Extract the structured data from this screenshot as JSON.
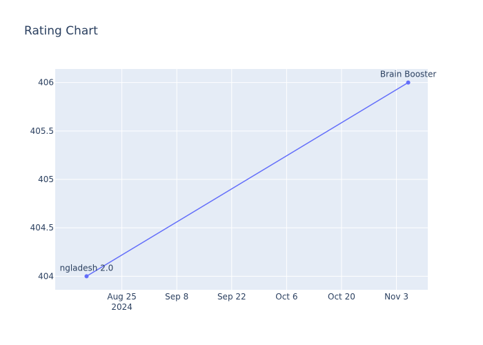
{
  "chart_data": {
    "type": "line",
    "title": "Rating Chart",
    "xlabel": "",
    "ylabel": "",
    "x_type": "date",
    "xlim": [
      "2024-08-08",
      "2024-11-11"
    ],
    "ylim": [
      403.86,
      406.14
    ],
    "grid": true,
    "legend": "none",
    "x_ticks": [
      {
        "date": "2024-08-25",
        "label": "Aug 25",
        "sublabel": "2024"
      },
      {
        "date": "2024-09-08",
        "label": "Sep 8",
        "sublabel": ""
      },
      {
        "date": "2024-09-22",
        "label": "Sep 22",
        "sublabel": ""
      },
      {
        "date": "2024-10-06",
        "label": "Oct 6",
        "sublabel": ""
      },
      {
        "date": "2024-10-20",
        "label": "Oct 20",
        "sublabel": ""
      },
      {
        "date": "2024-11-03",
        "label": "Nov 3",
        "sublabel": ""
      }
    ],
    "y_ticks": [
      {
        "value": 404,
        "label": "404"
      },
      {
        "value": 404.5,
        "label": "404.5"
      },
      {
        "value": 405,
        "label": "405"
      },
      {
        "value": 405.5,
        "label": "405.5"
      },
      {
        "value": 406,
        "label": "406"
      }
    ],
    "series": [
      {
        "x": [
          "2024-08-16",
          "2024-11-06"
        ],
        "y": [
          404,
          406
        ],
        "labels": [
          "ngladesh 2.0",
          "Brain Booster"
        ]
      }
    ]
  },
  "colors": {
    "plot_bg": "#e5ecf6",
    "grid": "#ffffff",
    "line": "#636efa",
    "text": "#2a3f5f"
  }
}
